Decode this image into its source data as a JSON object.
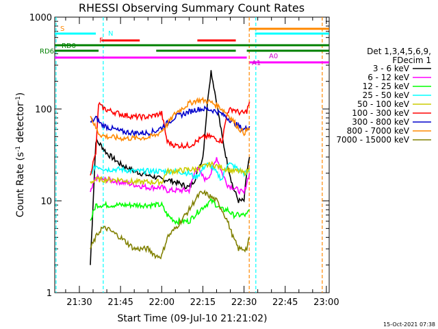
{
  "chart_data": {
    "type": "line",
    "title": "RHESSI Observing Summary Count Rates",
    "xlabel": "Start Time (09-Jul-10 21:21:02)",
    "ylabel_prefix": "Count Rate (s",
    "ylabel_sup": "-1",
    "ylabel_suffix": " detector",
    "ylabel_sup2": "-1",
    "ylabel_end": ")",
    "yscale": "log",
    "ylim": [
      1,
      1000
    ],
    "xlim_minutes": [
      21.03,
      121.03
    ],
    "x_ticks": [
      {
        "label": "21:30",
        "min": 30
      },
      {
        "label": "21:45",
        "min": 45
      },
      {
        "label": "22:00",
        "min": 60
      },
      {
        "label": "22:15",
        "min": 75
      },
      {
        "label": "22:30",
        "min": 90
      },
      {
        "label": "22:45",
        "min": 105
      },
      {
        "label": "23:00",
        "min": 120
      }
    ],
    "y_ticks": [
      {
        "label": "1",
        "value": 1
      },
      {
        "label": "10",
        "value": 10
      },
      {
        "label": "100",
        "value": 100
      },
      {
        "label": "1000",
        "value": 1000
      }
    ],
    "timestamp": "15-Oct-2021 07:38",
    "legend": {
      "header1": "Det 1,3,4,5,6,9,",
      "header2": "FDecim 1",
      "placement": "right"
    },
    "series": [
      {
        "name": "3 - 6 keV",
        "color": "#000000",
        "x": [
          34,
          36,
          38,
          40,
          45,
          50,
          55,
          58,
          60,
          62,
          65,
          70,
          72,
          75,
          77,
          78,
          80,
          82,
          84,
          86,
          88,
          90,
          91,
          92
        ],
        "y": [
          2,
          45,
          40,
          33,
          25,
          21,
          19,
          18,
          17,
          17,
          16,
          14,
          17,
          30,
          150,
          260,
          120,
          50,
          25,
          14,
          10,
          10,
          20,
          30
        ]
      },
      {
        "name": "6 - 12 keV",
        "color": "#ff00ff",
        "x": [
          34,
          36,
          38,
          40,
          45,
          50,
          55,
          58,
          60,
          62,
          65,
          70,
          72,
          73,
          74,
          76,
          78,
          80,
          82,
          84,
          86,
          88,
          90,
          91,
          92
        ],
        "y": [
          12,
          18,
          17,
          17,
          16,
          15,
          14,
          14,
          14,
          13,
          13,
          13,
          20,
          24,
          20,
          17,
          20,
          30,
          20,
          15,
          14,
          13,
          12,
          16,
          20
        ]
      },
      {
        "name": "12 - 25 keV",
        "color": "#00ff00",
        "x": [
          34,
          36,
          38,
          40,
          45,
          50,
          55,
          58,
          60,
          62,
          65,
          70,
          72,
          74,
          76,
          78,
          80,
          82,
          84,
          86,
          88,
          90,
          91,
          92
        ],
        "y": [
          6,
          9,
          9,
          9,
          9,
          9,
          9,
          9,
          9,
          7,
          6,
          6,
          7,
          8,
          9,
          10,
          9,
          8,
          8,
          7,
          7,
          7,
          7,
          8
        ]
      },
      {
        "name": "25 - 50 keV",
        "color": "#00ffff",
        "x": [
          34,
          36,
          38,
          40,
          45,
          50,
          55,
          58,
          60,
          62,
          65,
          70,
          72,
          74,
          76,
          78,
          80,
          82,
          84,
          86,
          88,
          90,
          91,
          92
        ],
        "y": [
          20,
          24,
          23,
          22,
          22,
          21,
          21,
          21,
          21,
          21,
          21,
          20,
          18,
          20,
          25,
          24,
          20,
          17,
          26,
          24,
          22,
          20,
          20,
          22
        ]
      },
      {
        "name": "50 - 100 keV",
        "color": "#cccc00",
        "x": [
          34,
          36,
          38,
          40,
          45,
          50,
          55,
          58,
          60,
          62,
          65,
          70,
          72,
          74,
          76,
          78,
          80,
          82,
          84,
          86,
          88,
          90,
          91,
          92
        ],
        "y": [
          16,
          17,
          17,
          17,
          17,
          16,
          16,
          16,
          16,
          21,
          21,
          22,
          22,
          23,
          24,
          25,
          24,
          23,
          22,
          21,
          21,
          20,
          21,
          22
        ]
      },
      {
        "name": "100 - 300 keV",
        "color": "#ff0000",
        "x": [
          34,
          36,
          37,
          38,
          40,
          45,
          50,
          55,
          58,
          60,
          62,
          65,
          70,
          72,
          74,
          76,
          78,
          80,
          82,
          84,
          86,
          88,
          90,
          91,
          92
        ],
        "y": [
          20,
          33,
          115,
          105,
          98,
          88,
          82,
          82,
          86,
          90,
          44,
          40,
          40,
          43,
          47,
          50,
          50,
          47,
          45,
          95,
          100,
          92,
          90,
          95,
          120
        ]
      },
      {
        "name": "300 - 800 keV",
        "color": "#0000cc",
        "x": [
          34,
          36,
          37,
          38,
          40,
          45,
          50,
          55,
          58,
          60,
          62,
          65,
          70,
          72,
          74,
          76,
          78,
          80,
          82,
          84,
          86,
          88,
          90,
          91,
          92
        ],
        "y": [
          70,
          80,
          74,
          68,
          64,
          57,
          55,
          55,
          58,
          63,
          70,
          82,
          93,
          98,
          100,
          100,
          98,
          94,
          88,
          80,
          72,
          65,
          60,
          62,
          65
        ]
      },
      {
        "name": "800 - 7000 keV",
        "color": "#ff8800",
        "x": [
          34,
          36,
          37,
          38,
          40,
          45,
          50,
          55,
          58,
          60,
          62,
          65,
          70,
          72,
          74,
          76,
          78,
          80,
          82,
          84,
          86,
          88,
          90,
          91,
          92
        ],
        "y": [
          85,
          62,
          55,
          52,
          50,
          48,
          48,
          49,
          52,
          58,
          68,
          90,
          115,
          122,
          125,
          123,
          118,
          110,
          100,
          88,
          75,
          62,
          55,
          58,
          62
        ]
      },
      {
        "name": "7000 - 15000 keV",
        "color": "#808000",
        "x": [
          34,
          36,
          38,
          40,
          45,
          50,
          55,
          58,
          60,
          62,
          65,
          70,
          72,
          74,
          76,
          78,
          80,
          82,
          84,
          86,
          88,
          90,
          91,
          92
        ],
        "y": [
          3,
          4,
          5,
          5,
          4,
          3,
          3,
          2.5,
          2.5,
          4,
          5,
          8,
          10,
          12,
          12,
          11,
          10,
          8,
          6,
          4,
          3,
          3,
          3,
          4
        ]
      }
    ],
    "annotations": [
      {
        "label": "S",
        "color": "#ff8800"
      },
      {
        "label": "N",
        "color": "#00ffff"
      },
      {
        "label": "F",
        "color": "#ff0000"
      },
      {
        "label": "RD0",
        "color": "#008000"
      },
      {
        "label": "RD6",
        "color": "#008000"
      },
      {
        "label": "A1",
        "color": "#cc00cc"
      },
      {
        "label": "A0",
        "color": "#cc00cc"
      }
    ],
    "state_bars": [
      {
        "name": "S",
        "color": "#ff8800",
        "segments": [
          [
            92,
            121
          ]
        ]
      },
      {
        "name": "N",
        "color": "#00ffff",
        "segments": [
          [
            21,
            36
          ],
          [
            94,
            121
          ]
        ]
      },
      {
        "name": "F",
        "color": "#ff0000",
        "segments": [
          [
            38,
            52
          ],
          [
            73,
            87
          ]
        ]
      },
      {
        "name": "RD0",
        "color": "#008000",
        "segments": [
          [
            21,
            121
          ]
        ]
      },
      {
        "name": "RD6",
        "color": "#008000",
        "segments": [
          [
            21,
            37
          ],
          [
            58,
            87
          ],
          [
            91,
            121
          ]
        ]
      },
      {
        "name": "A1",
        "color": "#ff00ff",
        "segments": [
          [
            21,
            91
          ]
        ]
      },
      {
        "name": "A0",
        "color": "#ff00ff",
        "segments": [
          [
            92,
            121
          ]
        ]
      }
    ],
    "vlines": [
      {
        "color": "#00ffff",
        "min": 21.5
      },
      {
        "color": "#00ffff",
        "min": 38.7
      },
      {
        "color": "#ff8800",
        "min": 91.9
      },
      {
        "color": "#00ffff",
        "min": 94.3
      },
      {
        "color": "#ff8800",
        "min": 118.5
      }
    ]
  }
}
